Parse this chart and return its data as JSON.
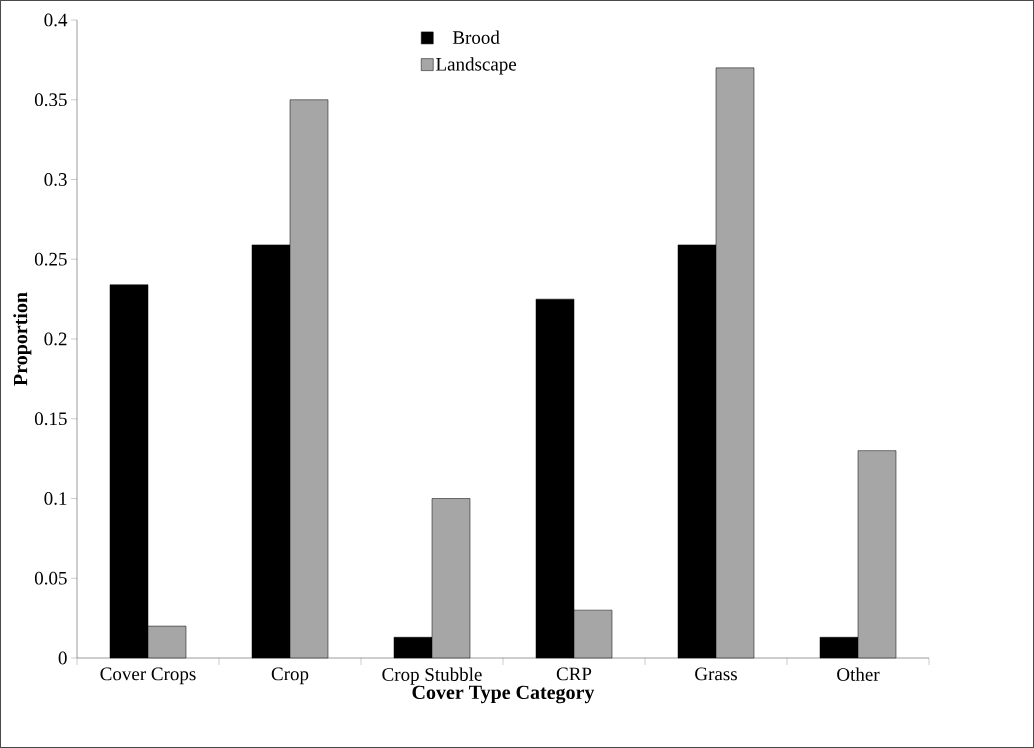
{
  "chart_data": {
    "type": "bar",
    "xlabel": "Cover Type Category",
    "ylabel": "Proportion",
    "categories": [
      "Cover Crops",
      "Crop",
      "Crop Stubble",
      "CRP",
      "Grass",
      "Other"
    ],
    "series": [
      {
        "name": "Brood",
        "color": "#000000",
        "values": [
          0.234,
          0.259,
          0.013,
          0.225,
          0.259,
          0.013
        ]
      },
      {
        "name": "Landscape",
        "color": "#a6a6a6",
        "values": [
          0.02,
          0.35,
          0.1,
          0.03,
          0.37,
          0.13
        ]
      }
    ],
    "ylim": [
      0,
      0.4
    ],
    "yticks": [
      0,
      0.05,
      0.1,
      0.15,
      0.2,
      0.25,
      0.3,
      0.35,
      0.4
    ],
    "grid": false,
    "legend": "top"
  }
}
